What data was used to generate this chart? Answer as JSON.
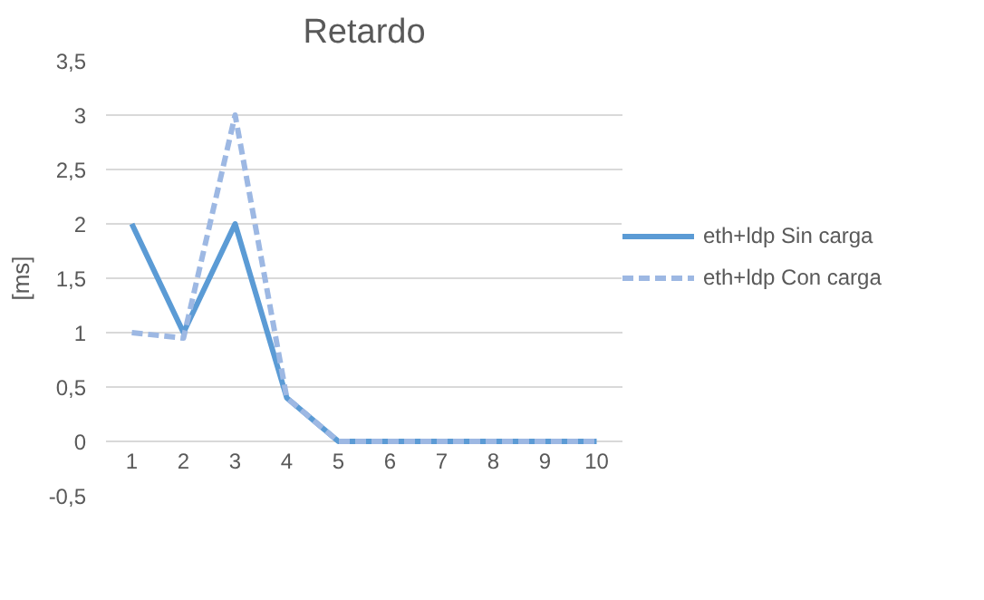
{
  "chart_data": {
    "type": "line",
    "title": "Retardo",
    "ylabel": "[ms]",
    "categories": [
      "1",
      "2",
      "3",
      "4",
      "5",
      "6",
      "7",
      "8",
      "9",
      "10"
    ],
    "series": [
      {
        "name": "eth+ldp Sin carga",
        "color": "#5b9bd5",
        "line_style": "solid",
        "values": [
          2,
          1,
          2,
          0.4,
          0,
          0,
          0,
          0,
          0,
          0
        ]
      },
      {
        "name": "eth+ldp Con carga",
        "color": "#9db8e3",
        "line_style": "dashed",
        "values": [
          1,
          0.95,
          3,
          0.4,
          0,
          0,
          0,
          0,
          0,
          0
        ]
      }
    ],
    "ylim": [
      -0.5,
      3.5
    ],
    "yticks": [
      {
        "value": -0.5,
        "label": "-0,5"
      },
      {
        "value": 0,
        "label": "0"
      },
      {
        "value": 0.5,
        "label": "0,5"
      },
      {
        "value": 1,
        "label": "1"
      },
      {
        "value": 1.5,
        "label": "1,5"
      },
      {
        "value": 2,
        "label": "2"
      },
      {
        "value": 2.5,
        "label": "2,5"
      },
      {
        "value": 3,
        "label": "3"
      },
      {
        "value": 3.5,
        "label": "3,5"
      }
    ],
    "grid": "y",
    "legend": "right",
    "marker": "none"
  }
}
